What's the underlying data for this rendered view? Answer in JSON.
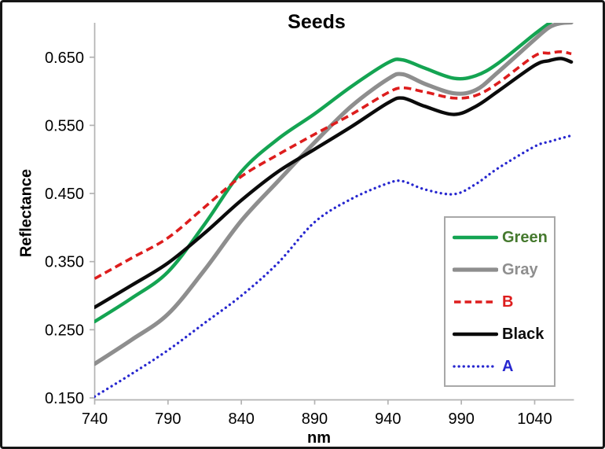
{
  "chart_data": {
    "type": "line",
    "title": "Seeds",
    "xlabel": "nm",
    "ylabel": "Reflectance",
    "x_ticks": [
      740,
      790,
      840,
      890,
      940,
      990,
      1040
    ],
    "y_ticks": [
      0.15,
      0.25,
      0.35,
      0.45,
      0.55,
      0.65
    ],
    "xlim": [
      740,
      1067
    ],
    "ylim": [
      0.15,
      0.7
    ],
    "grid": false,
    "legend_position": "inside-right",
    "x": [
      740,
      765,
      790,
      815,
      840,
      865,
      890,
      915,
      940,
      950,
      965,
      985,
      1000,
      1015,
      1040,
      1050,
      1058,
      1065
    ],
    "series": [
      {
        "name": "Green",
        "color": "#14a452",
        "label_color": "#45792e",
        "style": "solid",
        "width": 4.4,
        "values": [
          0.262,
          0.296,
          0.335,
          0.405,
          0.482,
          0.53,
          0.567,
          0.607,
          0.642,
          0.646,
          0.634,
          0.619,
          0.623,
          0.641,
          0.684,
          0.7,
          0.712,
          0.722
        ]
      },
      {
        "name": "Gray",
        "color": "#8e8e8e",
        "label_color": "#8e8e8e",
        "style": "solid",
        "width": 5.2,
        "values": [
          0.2,
          0.235,
          0.273,
          0.338,
          0.41,
          0.468,
          0.525,
          0.578,
          0.618,
          0.625,
          0.611,
          0.597,
          0.602,
          0.628,
          0.676,
          0.694,
          0.7,
          0.701
        ]
      },
      {
        "name": "B",
        "color": "#dd1d1d",
        "label_color": "#dd1d1d",
        "style": "dashed",
        "width": 3.6,
        "values": [
          0.325,
          0.355,
          0.385,
          0.43,
          0.475,
          0.507,
          0.537,
          0.566,
          0.598,
          0.605,
          0.599,
          0.59,
          0.594,
          0.612,
          0.652,
          0.656,
          0.658,
          0.655
        ]
      },
      {
        "name": "Black",
        "color": "#0b0b0b",
        "label_color": "#0b0b0b",
        "style": "solid",
        "width": 4.4,
        "values": [
          0.283,
          0.315,
          0.348,
          0.392,
          0.44,
          0.482,
          0.515,
          0.548,
          0.583,
          0.59,
          0.578,
          0.566,
          0.578,
          0.6,
          0.638,
          0.645,
          0.648,
          0.643
        ]
      },
      {
        "name": "A",
        "color": "#2727cf",
        "label_color": "#2727cf",
        "style": "dotted",
        "width": 3.3,
        "values": [
          0.152,
          0.185,
          0.22,
          0.26,
          0.3,
          0.348,
          0.408,
          0.442,
          0.465,
          0.468,
          0.456,
          0.449,
          0.464,
          0.487,
          0.519,
          0.526,
          0.531,
          0.535
        ]
      }
    ]
  },
  "frame": {
    "background": "#ffffff",
    "border_color": "#161616",
    "axis_color": "#b3b3b3",
    "tick_label_color": "#000000",
    "legend_border_color": "#a8a8a8"
  }
}
